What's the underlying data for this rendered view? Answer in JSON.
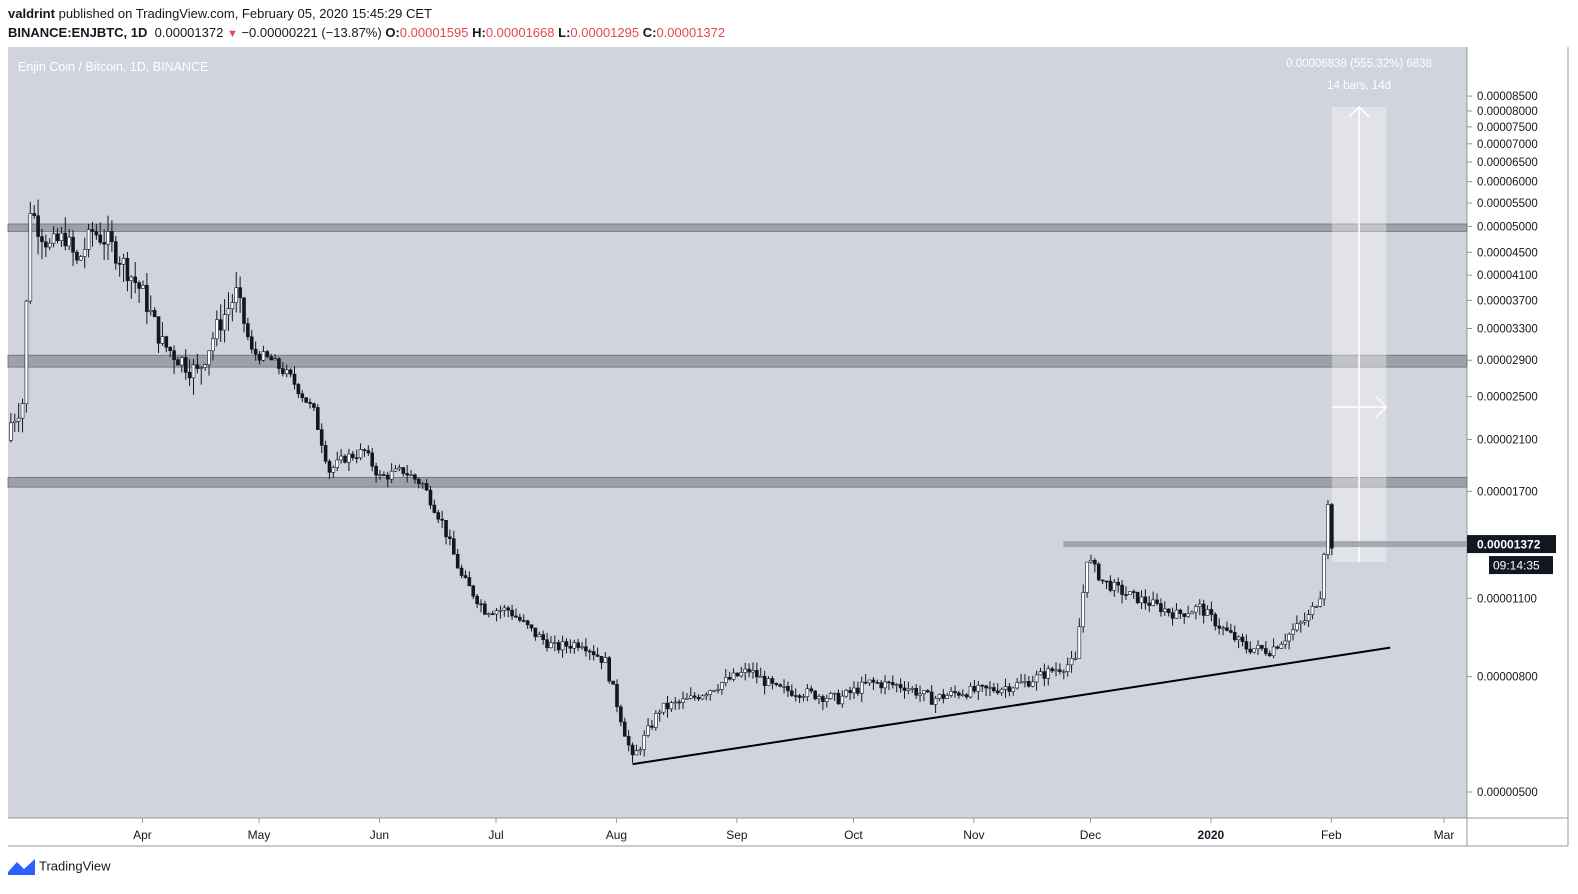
{
  "header": {
    "author": "valdrint",
    "published_text": "published on TradingView.com, February 05, 2020 15:45:29 CET",
    "symbol": "BINANCE:ENJBTC, 1D",
    "last": "0.00001372",
    "change": "−0.00000221 (−13.87%)",
    "o_label": "O:",
    "o": "0.00001595",
    "h_label": "H:",
    "h": "0.00001668",
    "l_label": "L:",
    "l": "0.00001295",
    "c_label": "C:",
    "c": "0.00001372"
  },
  "footer": {
    "brand": "TradingView"
  },
  "colors": {
    "pane_bg": "#d1d4dc",
    "candle": "#131722",
    "zone": "#9598a1",
    "label_bg": "#131722",
    "negative": "#e5484d"
  },
  "chart_data": {
    "type": "candlestick",
    "title": "Enjin Coin / Bitcoin, 1D, BINANCE",
    "y_scale": "log",
    "ylim": [
      4.3e-06,
      9.3e-06
    ],
    "y_ticks": [
      "0.00008500",
      "0.00008000",
      "0.00007500",
      "0.00007000",
      "0.00006500",
      "0.00006000",
      "0.00005500",
      "0.00005000",
      "0.00004500",
      "0.00004100",
      "0.00003700",
      "0.00003300",
      "0.00002900",
      "0.00002500",
      "0.00002100",
      "0.00001700",
      "0.00001100",
      "0.00000800",
      "0.00000500"
    ],
    "x_ticks": [
      "Apr",
      "May",
      "Jun",
      "Jul",
      "Aug",
      "Sep",
      "Oct",
      "Nov",
      "Dec",
      "2020",
      "Feb",
      "Mar"
    ],
    "last_price_label": "0.00001372",
    "countdown_label": "09:14:35",
    "resistance_zones": [
      {
        "low": 4.9e-05,
        "high": 5.05e-05
      },
      {
        "low": 2.82e-05,
        "high": 2.96e-05
      },
      {
        "low": 1.73e-05,
        "high": 1.8e-05
      }
    ],
    "horizontal_line": {
      "from": "2019-12-01",
      "to": "2020-02-04",
      "price": 1.372e-05
    },
    "trendline": [
      {
        "date": "2019-08-09",
        "price": 5.6e-06
      },
      {
        "date": "2020-02-20",
        "price": 9e-06
      }
    ],
    "measure_tool": {
      "label_1": "0.00006838 (555.32%) 6838",
      "label_2": "14 bars, 14d"
    },
    "series": [
      {
        "date": "2019-03-02",
        "price": 2.25e-05
      },
      {
        "date": "2019-03-05",
        "price": 2.45e-05
      },
      {
        "date": "2019-03-07",
        "price": 5.4e-05
      },
      {
        "date": "2019-03-09",
        "price": 5e-05
      },
      {
        "date": "2019-03-12",
        "price": 4.6e-05
      },
      {
        "date": "2019-03-16",
        "price": 4.8e-05
      },
      {
        "date": "2019-03-19",
        "price": 4.3e-05
      },
      {
        "date": "2019-03-23",
        "price": 4.9e-05
      },
      {
        "date": "2019-03-27",
        "price": 4.7e-05
      },
      {
        "date": "2019-03-31",
        "price": 4.3e-05
      },
      {
        "date": "2019-04-05",
        "price": 3.8e-05
      },
      {
        "date": "2019-04-10",
        "price": 3.1e-05
      },
      {
        "date": "2019-04-15",
        "price": 2.9e-05
      },
      {
        "date": "2019-04-19",
        "price": 2.75e-05
      },
      {
        "date": "2019-04-24",
        "price": 3.3e-05
      },
      {
        "date": "2019-04-29",
        "price": 3.8e-05
      },
      {
        "date": "2019-05-03",
        "price": 3e-05
      },
      {
        "date": "2019-05-08",
        "price": 2.9e-05
      },
      {
        "date": "2019-05-13",
        "price": 2.7e-05
      },
      {
        "date": "2019-05-19",
        "price": 2.35e-05
      },
      {
        "date": "2019-05-23",
        "price": 1.85e-05
      },
      {
        "date": "2019-05-27",
        "price": 1.95e-05
      },
      {
        "date": "2019-06-01",
        "price": 2e-05
      },
      {
        "date": "2019-06-05",
        "price": 1.8e-05
      },
      {
        "date": "2019-06-11",
        "price": 1.85e-05
      },
      {
        "date": "2019-06-16",
        "price": 1.75e-05
      },
      {
        "date": "2019-06-21",
        "price": 1.5e-05
      },
      {
        "date": "2019-06-26",
        "price": 1.2e-05
      },
      {
        "date": "2019-07-02",
        "price": 1.05e-05
      },
      {
        "date": "2019-07-08",
        "price": 1.05e-05
      },
      {
        "date": "2019-07-15",
        "price": 9.5e-06
      },
      {
        "date": "2019-07-20",
        "price": 9e-06
      },
      {
        "date": "2019-07-27",
        "price": 9.2e-06
      },
      {
        "date": "2019-08-02",
        "price": 8.5e-06
      },
      {
        "date": "2019-08-09",
        "price": 5.7e-06
      },
      {
        "date": "2019-08-16",
        "price": 7e-06
      },
      {
        "date": "2019-08-24",
        "price": 7.3e-06
      },
      {
        "date": "2019-09-01",
        "price": 7.8e-06
      },
      {
        "date": "2019-09-08",
        "price": 8.2e-06
      },
      {
        "date": "2019-09-15",
        "price": 7.6e-06
      },
      {
        "date": "2019-09-22",
        "price": 7.5e-06
      },
      {
        "date": "2019-10-01",
        "price": 7.3e-06
      },
      {
        "date": "2019-10-09",
        "price": 7.8e-06
      },
      {
        "date": "2019-10-18",
        "price": 7.7e-06
      },
      {
        "date": "2019-10-25",
        "price": 7.3e-06
      },
      {
        "date": "2019-11-01",
        "price": 7.5e-06
      },
      {
        "date": "2019-11-10",
        "price": 7.6e-06
      },
      {
        "date": "2019-11-18",
        "price": 7.8e-06
      },
      {
        "date": "2019-11-25",
        "price": 8.2e-06
      },
      {
        "date": "2019-12-01",
        "price": 8.5e-06
      },
      {
        "date": "2019-12-04",
        "price": 1.3e-05
      },
      {
        "date": "2019-12-08",
        "price": 1.18e-05
      },
      {
        "date": "2019-12-14",
        "price": 1.12e-05
      },
      {
        "date": "2019-12-20",
        "price": 1.08e-05
      },
      {
        "date": "2019-12-27",
        "price": 1.03e-05
      },
      {
        "date": "2020-01-02",
        "price": 1.06e-05
      },
      {
        "date": "2020-01-08",
        "price": 9.7e-06
      },
      {
        "date": "2020-01-14",
        "price": 9e-06
      },
      {
        "date": "2020-01-20",
        "price": 8.9e-06
      },
      {
        "date": "2020-01-25",
        "price": 9.5e-06
      },
      {
        "date": "2020-01-30",
        "price": 1.02e-05
      },
      {
        "date": "2020-02-02",
        "price": 1.12e-05
      },
      {
        "date": "2020-02-04",
        "price": 1.6e-05
      },
      {
        "date": "2020-02-05",
        "price": 1.372e-05
      }
    ]
  }
}
